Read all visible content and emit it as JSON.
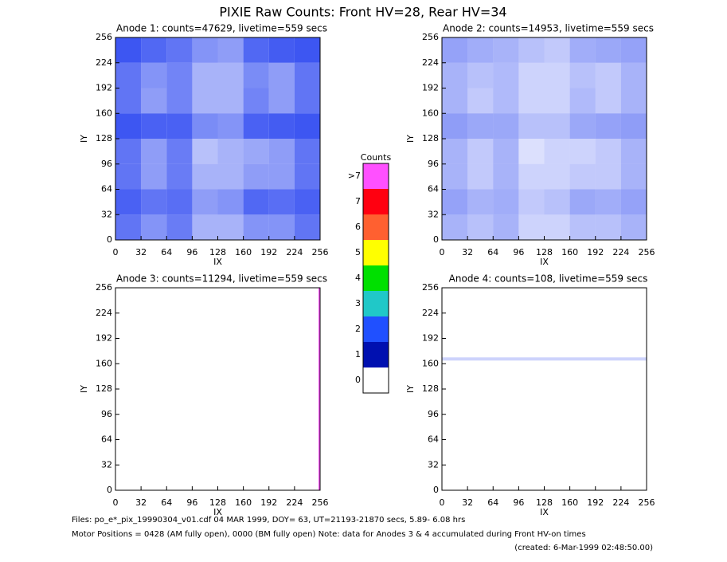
{
  "title": "PIXIE Raw Counts:  Front HV=28, Rear HV=34",
  "chart_data": [
    {
      "type": "heatmap",
      "title": "Anode 1: counts=47629, livetime=559 secs",
      "xlabel": "IX",
      "ylabel": "IY",
      "color": "#1f3cf0",
      "xlim": [
        0,
        256
      ],
      "ylim": [
        0,
        256
      ],
      "xticks": [
        0,
        32,
        64,
        96,
        128,
        160,
        192,
        224,
        256
      ],
      "yticks": [
        0,
        32,
        64,
        96,
        128,
        160,
        192,
        224,
        256
      ],
      "xbins": [
        0,
        32,
        64,
        96,
        128,
        160,
        192,
        224,
        256
      ],
      "ybins": [
        0,
        32,
        64,
        96,
        128,
        160,
        192,
        224,
        256
      ],
      "values": [
        [
          1.0,
          0.6,
          0.9,
          0.3,
          0.3,
          0.6,
          0.6,
          1.0
        ],
        [
          1.3,
          1.0,
          1.1,
          0.5,
          0.6,
          1.2,
          1.1,
          1.3
        ],
        [
          1.0,
          0.5,
          0.9,
          0.3,
          0.3,
          0.5,
          0.5,
          1.0
        ],
        [
          1.0,
          0.5,
          0.9,
          0.2,
          0.3,
          0.4,
          0.5,
          1.0
        ],
        [
          1.5,
          1.3,
          1.3,
          0.7,
          0.6,
          1.3,
          1.4,
          1.5
        ],
        [
          1.0,
          0.5,
          0.8,
          0.3,
          0.3,
          0.8,
          0.5,
          1.0
        ],
        [
          1.0,
          0.6,
          0.8,
          0.3,
          0.3,
          0.7,
          0.5,
          1.0
        ],
        [
          1.5,
          1.2,
          1.0,
          0.6,
          0.5,
          1.2,
          1.4,
          1.5
        ]
      ]
    },
    {
      "type": "heatmap",
      "title": "Anode 2: counts=14953, livetime=559 secs",
      "xlabel": "IX",
      "ylabel": "IY",
      "color": "#1f3cf0",
      "xlim": [
        0,
        256
      ],
      "ylim": [
        0,
        256
      ],
      "xticks": [
        0,
        32,
        64,
        96,
        128,
        160,
        192,
        224,
        256
      ],
      "yticks": [
        0,
        32,
        64,
        96,
        128,
        160,
        192,
        224,
        256
      ],
      "xbins": [
        0,
        32,
        64,
        96,
        128,
        160,
        192,
        224,
        256
      ],
      "ybins": [
        0,
        32,
        64,
        96,
        128,
        160,
        192,
        224,
        256
      ],
      "values": [
        [
          0.3,
          0.2,
          0.3,
          0.1,
          0.1,
          0.2,
          0.2,
          0.3
        ],
        [
          0.45,
          0.3,
          0.35,
          0.15,
          0.2,
          0.4,
          0.35,
          0.45
        ],
        [
          0.3,
          0.15,
          0.3,
          0.1,
          0.1,
          0.15,
          0.15,
          0.3
        ],
        [
          0.3,
          0.15,
          0.3,
          0.05,
          0.1,
          0.1,
          0.15,
          0.3
        ],
        [
          0.5,
          0.4,
          0.4,
          0.2,
          0.2,
          0.4,
          0.45,
          0.5
        ],
        [
          0.3,
          0.15,
          0.25,
          0.1,
          0.1,
          0.25,
          0.15,
          0.3
        ],
        [
          0.3,
          0.2,
          0.25,
          0.1,
          0.1,
          0.2,
          0.15,
          0.3
        ],
        [
          0.45,
          0.35,
          0.3,
          0.2,
          0.15,
          0.35,
          0.4,
          0.45
        ]
      ]
    },
    {
      "type": "heatmap",
      "title": "Anode 3: counts=11294, livetime=559 secs",
      "xlabel": "IX",
      "ylabel": "IY",
      "color": "#ff50ff",
      "xlim": [
        0,
        256
      ],
      "ylim": [
        0,
        256
      ],
      "xticks": [
        0,
        32,
        64,
        96,
        128,
        160,
        192,
        224,
        256
      ],
      "yticks": [
        0,
        32,
        64,
        96,
        128,
        160,
        192,
        224,
        256
      ],
      "xbins": [
        0,
        254,
        256
      ],
      "ybins": [
        0,
        256
      ],
      "values": [
        [
          0,
          22
        ]
      ]
    },
    {
      "type": "heatmap",
      "title": "Anode 4: counts=108, livetime=559 secs",
      "xlabel": "IX",
      "ylabel": "IY",
      "color": "#1f3cf0",
      "xlim": [
        0,
        256
      ],
      "ylim": [
        0,
        256
      ],
      "xticks": [
        0,
        32,
        64,
        96,
        128,
        160,
        192,
        224,
        256
      ],
      "yticks": [
        0,
        32,
        64,
        96,
        128,
        160,
        192,
        224,
        256
      ],
      "xbins": [
        0,
        256
      ],
      "ybins": [
        0,
        164,
        168,
        256
      ],
      "values": [
        [
          0
        ],
        [
          0.1
        ],
        [
          0
        ]
      ]
    }
  ],
  "colorbar": {
    "title": "Counts",
    "ticks": [
      0,
      1,
      2,
      3,
      4,
      5,
      6,
      7,
      {
        "value": 8,
        "label": ">7"
      }
    ],
    "colors": [
      "#ffffff",
      "#0010b0",
      "#2050ff",
      "#20c8c8",
      "#00e000",
      "#ffff00",
      "#ff6030",
      "#ff0010",
      "#ff50ff"
    ]
  },
  "footer": [
    "Files: po_e*_pix_19990304_v01.cdf    04 MAR 1999, DOY= 63, UT=21193-21870 secs,  5.89- 6.08 hrs",
    "Motor Positions = 0428 (AM fully open), 0000 (BM fully open)    Note: data for Anodes 3 & 4 accumulated during Front HV-on times",
    "(created:  6-Mar-1999 02:48:50.00)"
  ]
}
